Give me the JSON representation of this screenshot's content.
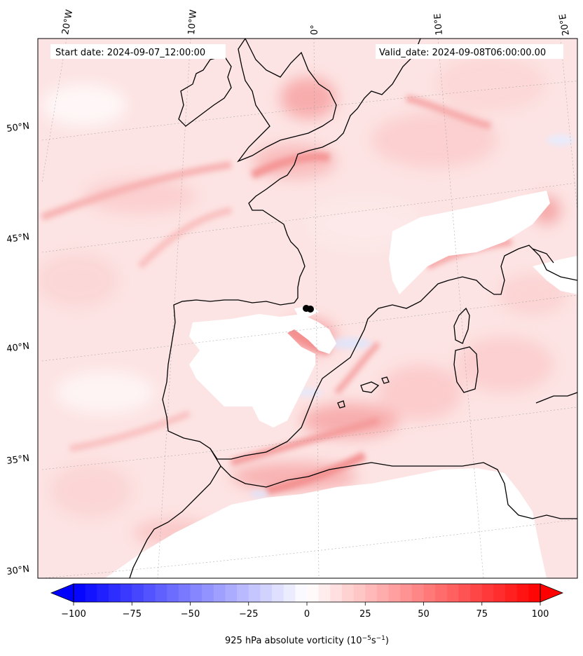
{
  "map": {
    "start_label": "Start date: 2024-09-07_12:00:00",
    "valid_label": "Valid_date: 2024-09-08T06:00:00.00",
    "longitude_labels": [
      "20°W",
      "10°W",
      "0°",
      "10°E",
      "20°E"
    ],
    "latitude_labels": [
      "50°N",
      "45°N",
      "40°N",
      "35°N",
      "30°N"
    ],
    "field": "925 hPa absolute vorticity",
    "marker": "storm-center-dot"
  },
  "colorbar": {
    "label_prefix": "925 hPa absolute vorticity (10",
    "label_exp1": "−5",
    "label_mid": "s",
    "label_exp2": "−1",
    "label_suffix": ")",
    "tick_labels": [
      "−100",
      "−75",
      "−50",
      "−25",
      "0",
      "25",
      "50",
      "75",
      "100"
    ],
    "min": -100,
    "max": 100,
    "low_color": "#0000ff",
    "high_color": "#ff0000",
    "mid_color": "#ffffff"
  }
}
